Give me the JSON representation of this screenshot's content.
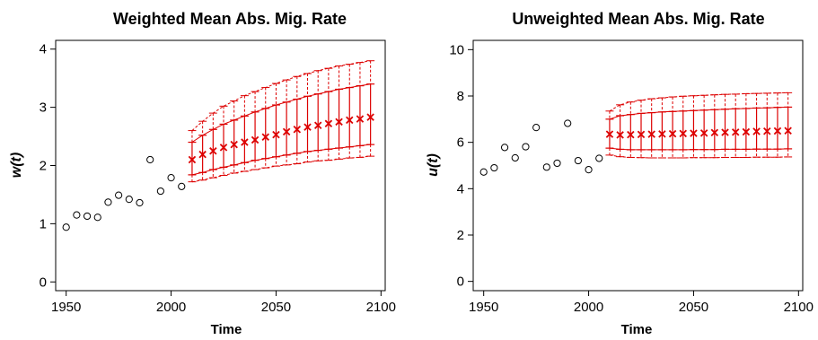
{
  "chart_data": [
    {
      "type": "scatter",
      "title": "Weighted Mean Abs. Mig. Rate",
      "xlabel": "Time",
      "ylabel": "w(t)",
      "xlim": [
        1945,
        2102
      ],
      "ylim": [
        -0.15,
        4.15
      ],
      "xticks": [
        1950,
        2000,
        2050,
        2100
      ],
      "yticks": [
        0,
        1,
        2,
        3,
        4
      ],
      "colors": {
        "observed": "#000000",
        "projection": "#dd0000"
      },
      "series": [
        {
          "kind": "observed",
          "marker": "circle",
          "x": [
            1950,
            1955,
            1960,
            1965,
            1970,
            1975,
            1980,
            1985,
            1990,
            1995,
            2000,
            2005
          ],
          "y": [
            0.94,
            1.15,
            1.13,
            1.11,
            1.37,
            1.49,
            1.42,
            1.36,
            2.1,
            1.56,
            1.79,
            1.64
          ]
        },
        {
          "kind": "projection",
          "marker": "x",
          "x": [
            2010,
            2015,
            2020,
            2025,
            2030,
            2035,
            2040,
            2045,
            2050,
            2055,
            2060,
            2065,
            2070,
            2075,
            2080,
            2085,
            2090,
            2095
          ],
          "median": [
            2.1,
            2.19,
            2.25,
            2.31,
            2.36,
            2.4,
            2.44,
            2.49,
            2.53,
            2.58,
            2.62,
            2.66,
            2.69,
            2.72,
            2.75,
            2.78,
            2.8,
            2.83
          ],
          "lower80": [
            1.84,
            1.88,
            1.93,
            1.97,
            2.01,
            2.05,
            2.09,
            2.12,
            2.15,
            2.18,
            2.21,
            2.24,
            2.26,
            2.28,
            2.3,
            2.32,
            2.34,
            2.36
          ],
          "upper80": [
            2.4,
            2.52,
            2.62,
            2.71,
            2.78,
            2.85,
            2.92,
            2.98,
            3.04,
            3.09,
            3.14,
            3.19,
            3.23,
            3.27,
            3.31,
            3.34,
            3.37,
            3.4
          ],
          "lower95": [
            1.72,
            1.75,
            1.79,
            1.83,
            1.87,
            1.9,
            1.93,
            1.96,
            1.99,
            2.01,
            2.03,
            2.06,
            2.08,
            2.09,
            2.11,
            2.13,
            2.14,
            2.16
          ],
          "upper95": [
            2.6,
            2.76,
            2.9,
            3.02,
            3.11,
            3.2,
            3.27,
            3.34,
            3.41,
            3.47,
            3.53,
            3.58,
            3.63,
            3.67,
            3.71,
            3.74,
            3.77,
            3.8
          ]
        }
      ]
    },
    {
      "type": "scatter",
      "title": "Unweighted Mean Abs. Mig. Rate",
      "xlabel": "Time",
      "ylabel": "u(t)",
      "xlim": [
        1945,
        2102
      ],
      "ylim": [
        -0.4,
        10.4
      ],
      "xticks": [
        1950,
        2000,
        2050,
        2100
      ],
      "yticks": [
        0,
        2,
        4,
        6,
        8,
        10
      ],
      "colors": {
        "observed": "#000000",
        "projection": "#dd0000"
      },
      "series": [
        {
          "kind": "observed",
          "marker": "circle",
          "x": [
            1950,
            1955,
            1960,
            1965,
            1970,
            1975,
            1980,
            1985,
            1990,
            1995,
            2000,
            2005
          ],
          "y": [
            4.72,
            4.9,
            5.78,
            5.33,
            5.81,
            6.64,
            4.93,
            5.1,
            6.82,
            5.21,
            4.82,
            5.31
          ]
        },
        {
          "kind": "projection",
          "marker": "x",
          "x": [
            2010,
            2015,
            2020,
            2025,
            2030,
            2035,
            2040,
            2045,
            2050,
            2055,
            2060,
            2065,
            2070,
            2075,
            2080,
            2085,
            2090,
            2095
          ],
          "median": [
            6.35,
            6.32,
            6.33,
            6.34,
            6.35,
            6.36,
            6.37,
            6.38,
            6.39,
            6.4,
            6.42,
            6.43,
            6.44,
            6.45,
            6.47,
            6.48,
            6.49,
            6.5
          ],
          "lower80": [
            5.75,
            5.7,
            5.68,
            5.68,
            5.68,
            5.68,
            5.68,
            5.68,
            5.69,
            5.69,
            5.69,
            5.7,
            5.7,
            5.7,
            5.71,
            5.71,
            5.71,
            5.72
          ],
          "upper80": [
            7.0,
            7.15,
            7.2,
            7.25,
            7.28,
            7.31,
            7.33,
            7.35,
            7.37,
            7.39,
            7.41,
            7.43,
            7.45,
            7.46,
            7.48,
            7.49,
            7.51,
            7.52
          ],
          "lower95": [
            5.45,
            5.38,
            5.35,
            5.34,
            5.33,
            5.33,
            5.33,
            5.33,
            5.34,
            5.34,
            5.34,
            5.35,
            5.35,
            5.35,
            5.36,
            5.36,
            5.36,
            5.37
          ],
          "upper95": [
            7.35,
            7.62,
            7.74,
            7.82,
            7.88,
            7.92,
            7.96,
            7.99,
            8.01,
            8.03,
            8.05,
            8.07,
            8.08,
            8.1,
            8.11,
            8.12,
            8.13,
            8.14
          ]
        }
      ]
    }
  ]
}
